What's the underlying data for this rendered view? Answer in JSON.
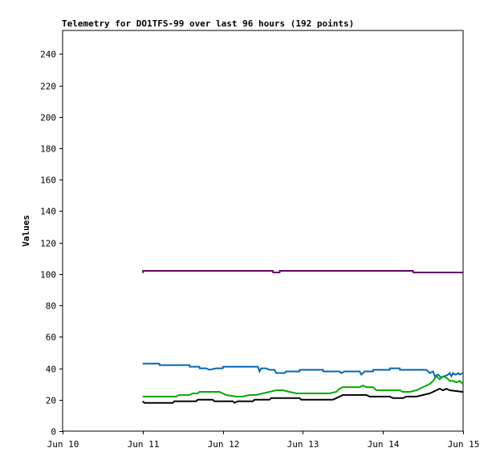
{
  "chart_data": {
    "type": "line",
    "title": "Telemetry for DO1TFS-99 over last 96 hours (192 points)",
    "xlabel": "",
    "ylabel": "Values",
    "xlim": [
      "2024-06-10T00:00",
      "2024-06-15T00:00"
    ],
    "ylim": [
      0,
      255
    ],
    "x_ticks": [
      "Jun 10",
      "Jun 11",
      "Jun 12",
      "Jun 13",
      "Jun 14",
      "Jun 15"
    ],
    "y_ticks": [
      0,
      20,
      40,
      60,
      80,
      100,
      120,
      140,
      160,
      180,
      200,
      220,
      240
    ],
    "grid": false,
    "legend": "none",
    "series": [
      {
        "color": "#660066",
        "points": [
          [
            "2024-06-10T23:59",
            101
          ],
          [
            "2024-06-11T00:05",
            101
          ],
          [
            "2024-06-11T00:06",
            102
          ],
          [
            "2024-06-11T12:00",
            102
          ],
          [
            "2024-06-12T13:00",
            102
          ],
          [
            "2024-06-12T15:00",
            102
          ],
          [
            "2024-06-12T15:05",
            101
          ],
          [
            "2024-06-12T17:00",
            101
          ],
          [
            "2024-06-12T17:05",
            102
          ],
          [
            "2024-06-13T12:00",
            102
          ],
          [
            "2024-06-14T08:00",
            102
          ],
          [
            "2024-06-14T09:00",
            102
          ],
          [
            "2024-06-14T09:05",
            101
          ],
          [
            "2024-06-14T23:55",
            101
          ]
        ]
      },
      {
        "color": "#0066b3",
        "points": [
          [
            "2024-06-10T23:59",
            43
          ],
          [
            "2024-06-11T05:00",
            43
          ],
          [
            "2024-06-11T05:05",
            42
          ],
          [
            "2024-06-11T14:00",
            42
          ],
          [
            "2024-06-11T14:05",
            41
          ],
          [
            "2024-06-11T17:00",
            41
          ],
          [
            "2024-06-11T17:05",
            40
          ],
          [
            "2024-06-11T19:00",
            40
          ],
          [
            "2024-06-11T20:00",
            39
          ],
          [
            "2024-06-11T22:00",
            40
          ],
          [
            "2024-06-12T00:00",
            40
          ],
          [
            "2024-06-12T00:05",
            41
          ],
          [
            "2024-06-12T10:30",
            41
          ],
          [
            "2024-06-12T11:00",
            38
          ],
          [
            "2024-06-12T11:30",
            40
          ],
          [
            "2024-06-12T13:00",
            40
          ],
          [
            "2024-06-12T14:00",
            39
          ],
          [
            "2024-06-12T15:30",
            39
          ],
          [
            "2024-06-12T16:00",
            37
          ],
          [
            "2024-06-12T18:30",
            37
          ],
          [
            "2024-06-12T19:00",
            38
          ],
          [
            "2024-06-12T23:00",
            38
          ],
          [
            "2024-06-12T23:05",
            39
          ],
          [
            "2024-06-13T06:00",
            39
          ],
          [
            "2024-06-13T06:05",
            38
          ],
          [
            "2024-06-13T11:00",
            38
          ],
          [
            "2024-06-13T11:30",
            37
          ],
          [
            "2024-06-13T12:30",
            38
          ],
          [
            "2024-06-13T17:00",
            38
          ],
          [
            "2024-06-13T17:30",
            36
          ],
          [
            "2024-06-13T18:30",
            38
          ],
          [
            "2024-06-13T21:00",
            38
          ],
          [
            "2024-06-13T21:05",
            39
          ],
          [
            "2024-06-14T02:00",
            39
          ],
          [
            "2024-06-14T02:05",
            40
          ],
          [
            "2024-06-14T05:00",
            40
          ],
          [
            "2024-06-14T05:05",
            39
          ],
          [
            "2024-06-14T13:00",
            39
          ],
          [
            "2024-06-14T14:00",
            37
          ],
          [
            "2024-06-14T15:00",
            38
          ],
          [
            "2024-06-14T15:30",
            35
          ],
          [
            "2024-06-14T16:30",
            36
          ],
          [
            "2024-06-14T17:30",
            34
          ],
          [
            "2024-06-14T18:30",
            35
          ],
          [
            "2024-06-14T19:30",
            36
          ],
          [
            "2024-06-14T20:00",
            37
          ],
          [
            "2024-06-14T20:30",
            35
          ],
          [
            "2024-06-14T21:00",
            37
          ],
          [
            "2024-06-14T21:30",
            36
          ],
          [
            "2024-06-14T22:00",
            36
          ],
          [
            "2024-06-14T22:30",
            37
          ],
          [
            "2024-06-14T23:00",
            36
          ],
          [
            "2024-06-14T23:55",
            37
          ]
        ]
      },
      {
        "color": "#00aa00",
        "points": [
          [
            "2024-06-10T23:59",
            22
          ],
          [
            "2024-06-11T10:00",
            22
          ],
          [
            "2024-06-11T11:00",
            23
          ],
          [
            "2024-06-11T14:00",
            23
          ],
          [
            "2024-06-11T15:00",
            24
          ],
          [
            "2024-06-11T16:30",
            24
          ],
          [
            "2024-06-11T17:00",
            25
          ],
          [
            "2024-06-11T23:00",
            25
          ],
          [
            "2024-06-12T00:00",
            24
          ],
          [
            "2024-06-12T01:00",
            23
          ],
          [
            "2024-06-12T04:00",
            22
          ],
          [
            "2024-06-12T06:00",
            22
          ],
          [
            "2024-06-12T08:00",
            23
          ],
          [
            "2024-06-12T10:00",
            23
          ],
          [
            "2024-06-12T12:00",
            24
          ],
          [
            "2024-06-12T14:00",
            25
          ],
          [
            "2024-06-12T16:00",
            26
          ],
          [
            "2024-06-12T18:00",
            26
          ],
          [
            "2024-06-12T20:00",
            25
          ],
          [
            "2024-06-12T22:00",
            24
          ],
          [
            "2024-06-13T04:00",
            24
          ],
          [
            "2024-06-13T08:00",
            24
          ],
          [
            "2024-06-13T10:00",
            25
          ],
          [
            "2024-06-13T11:00",
            27
          ],
          [
            "2024-06-13T12:00",
            28
          ],
          [
            "2024-06-13T17:00",
            28
          ],
          [
            "2024-06-13T18:00",
            29
          ],
          [
            "2024-06-13T19:00",
            28
          ],
          [
            "2024-06-13T21:00",
            28
          ],
          [
            "2024-06-13T22:00",
            26
          ],
          [
            "2024-06-14T05:00",
            26
          ],
          [
            "2024-06-14T06:00",
            25
          ],
          [
            "2024-06-14T08:00",
            25
          ],
          [
            "2024-06-14T10:00",
            26
          ],
          [
            "2024-06-14T12:00",
            28
          ],
          [
            "2024-06-14T14:00",
            30
          ],
          [
            "2024-06-14T15:00",
            32
          ],
          [
            "2024-06-14T16:00",
            35
          ],
          [
            "2024-06-14T17:00",
            33
          ],
          [
            "2024-06-14T18:00",
            35
          ],
          [
            "2024-06-14T19:00",
            34
          ],
          [
            "2024-06-14T20:00",
            32
          ],
          [
            "2024-06-14T21:00",
            32
          ],
          [
            "2024-06-14T22:00",
            31
          ],
          [
            "2024-06-14T23:00",
            32
          ],
          [
            "2024-06-14T23:55",
            30
          ]
        ]
      },
      {
        "color": "#000000",
        "points": [
          [
            "2024-06-10T23:59",
            19
          ],
          [
            "2024-06-11T00:30",
            18
          ],
          [
            "2024-06-11T09:00",
            18
          ],
          [
            "2024-06-11T09:30",
            19
          ],
          [
            "2024-06-11T16:00",
            19
          ],
          [
            "2024-06-11T16:30",
            20
          ],
          [
            "2024-06-11T21:00",
            20
          ],
          [
            "2024-06-11T21:30",
            19
          ],
          [
            "2024-06-12T00:00",
            19
          ],
          [
            "2024-06-12T03:00",
            19
          ],
          [
            "2024-06-12T03:30",
            18
          ],
          [
            "2024-06-12T04:30",
            19
          ],
          [
            "2024-06-12T09:00",
            19
          ],
          [
            "2024-06-12T09:30",
            20
          ],
          [
            "2024-06-12T14:00",
            20
          ],
          [
            "2024-06-12T14:30",
            21
          ],
          [
            "2024-06-12T23:00",
            21
          ],
          [
            "2024-06-12T23:30",
            20
          ],
          [
            "2024-06-13T09:00",
            20
          ],
          [
            "2024-06-13T10:00",
            21
          ],
          [
            "2024-06-13T11:00",
            22
          ],
          [
            "2024-06-13T12:00",
            23
          ],
          [
            "2024-06-13T19:00",
            23
          ],
          [
            "2024-06-13T20:00",
            22
          ],
          [
            "2024-06-14T02:00",
            22
          ],
          [
            "2024-06-14T03:00",
            21
          ],
          [
            "2024-06-14T06:00",
            21
          ],
          [
            "2024-06-14T07:00",
            22
          ],
          [
            "2024-06-14T10:00",
            22
          ],
          [
            "2024-06-14T12:00",
            23
          ],
          [
            "2024-06-14T14:00",
            24
          ],
          [
            "2024-06-14T15:00",
            25
          ],
          [
            "2024-06-14T16:00",
            26
          ],
          [
            "2024-06-14T17:00",
            27
          ],
          [
            "2024-06-14T18:00",
            26
          ],
          [
            "2024-06-14T19:00",
            27
          ],
          [
            "2024-06-14T20:00",
            26
          ],
          [
            "2024-06-14T23:55",
            25
          ]
        ]
      }
    ]
  }
}
